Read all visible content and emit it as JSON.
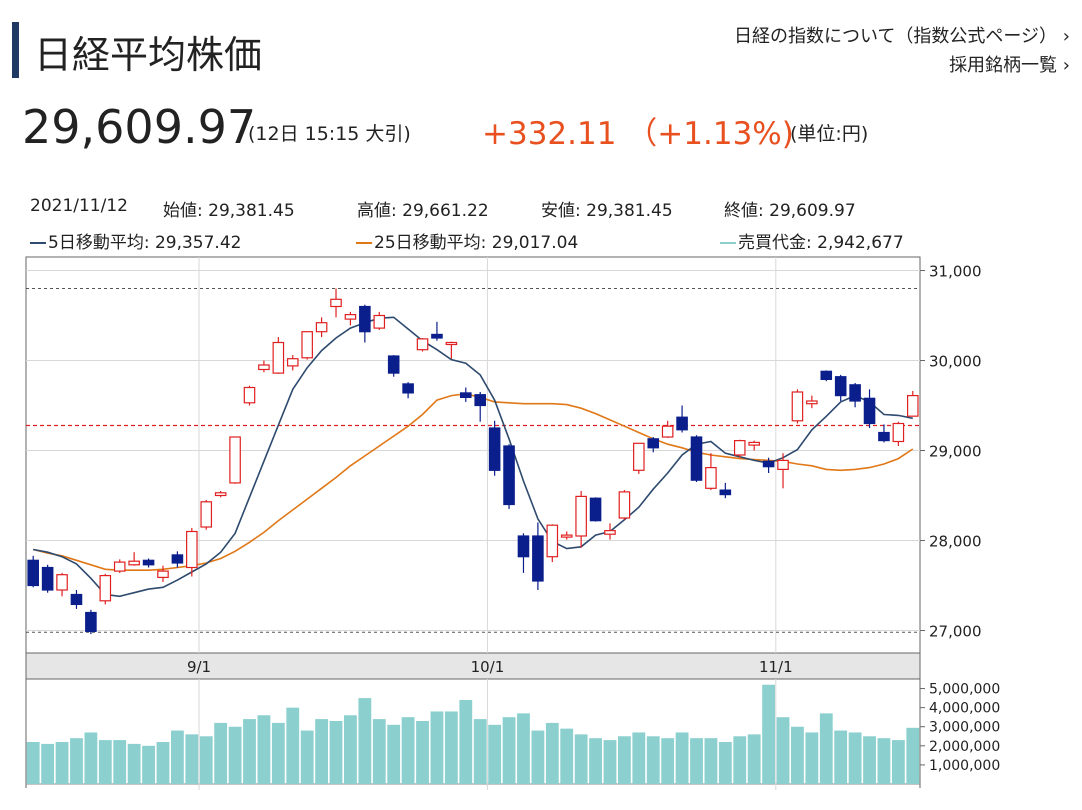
{
  "header": {
    "title": "日経平均株価",
    "link_index": "日経の指数について（指数公式ページ）",
    "link_constituents": "採用銘柄一覧",
    "chevron": "›"
  },
  "quote": {
    "price": "29,609.97",
    "time": "(12日 15:15 大引)",
    "change": "+332.11 （+1.13%)",
    "unit": "(単位:円)",
    "change_color": "#e8501f"
  },
  "ohlc": {
    "date": "2021/11/12",
    "open": "始値: 29,381.45",
    "high": "高値: 29,661.22",
    "low": "安値: 29,381.45",
    "close": "終値: 29,609.97",
    "ma5": "5日移動平均: 29,357.42",
    "ma25": "25日移動平均: 29,017.04",
    "volume": "売買代金: 2,942,677"
  },
  "colors": {
    "up": "#e02020",
    "down": "#0a1e8c",
    "ma5": "#2e4a6e",
    "ma25": "#e07818",
    "volume": "#8ccfcf",
    "ref_line": "#e02020"
  },
  "chart_data": {
    "type": "candlestick",
    "price_axis": {
      "ticks": [
        27000,
        28000,
        29000,
        30000,
        31000
      ],
      "labels": [
        "27,000",
        "28,000",
        "29,000",
        "30,000",
        "31,000"
      ],
      "ylim": [
        26750,
        31150
      ]
    },
    "volume_axis": {
      "ticks": [
        1000000,
        2000000,
        3000000,
        4000000,
        5000000
      ],
      "labels": [
        "1,000,000",
        "2,000,000",
        "3,000,000",
        "4,000,000",
        "5,000,000"
      ],
      "ylim": [
        0,
        5500000
      ]
    },
    "x_labels": [
      {
        "index": 12,
        "label": "9/1"
      },
      {
        "index": 32,
        "label": "10/1"
      },
      {
        "index": 52,
        "label": "11/1"
      }
    ],
    "reference_line": 29278,
    "dashed_levels": [
      30800,
      26980
    ],
    "candles": [
      {
        "o": 27780,
        "h": 27830,
        "l": 27480,
        "c": 27500
      },
      {
        "o": 27700,
        "h": 27730,
        "l": 27420,
        "c": 27450
      },
      {
        "o": 27450,
        "h": 27640,
        "l": 27380,
        "c": 27620
      },
      {
        "o": 27400,
        "h": 27450,
        "l": 27240,
        "c": 27290
      },
      {
        "o": 27200,
        "h": 27230,
        "l": 26960,
        "c": 26990
      },
      {
        "o": 27330,
        "h": 27630,
        "l": 27290,
        "c": 27610
      },
      {
        "o": 27660,
        "h": 27790,
        "l": 27640,
        "c": 27760
      },
      {
        "o": 27730,
        "h": 27870,
        "l": 27720,
        "c": 27770
      },
      {
        "o": 27780,
        "h": 27800,
        "l": 27700,
        "c": 27730
      },
      {
        "o": 27590,
        "h": 27720,
        "l": 27540,
        "c": 27660
      },
      {
        "o": 27840,
        "h": 27880,
        "l": 27700,
        "c": 27750
      },
      {
        "o": 27700,
        "h": 28140,
        "l": 27600,
        "c": 28100
      },
      {
        "o": 28150,
        "h": 28450,
        "l": 28120,
        "c": 28430
      },
      {
        "o": 28500,
        "h": 28550,
        "l": 28480,
        "c": 28530
      },
      {
        "o": 28640,
        "h": 29150,
        "l": 28630,
        "c": 29150
      },
      {
        "o": 29530,
        "h": 29720,
        "l": 29500,
        "c": 29700
      },
      {
        "o": 29900,
        "h": 30000,
        "l": 29870,
        "c": 29950
      },
      {
        "o": 29860,
        "h": 30260,
        "l": 29850,
        "c": 30200
      },
      {
        "o": 29940,
        "h": 30060,
        "l": 29890,
        "c": 30020
      },
      {
        "o": 30030,
        "h": 30320,
        "l": 30010,
        "c": 30320
      },
      {
        "o": 30320,
        "h": 30480,
        "l": 30260,
        "c": 30420
      },
      {
        "o": 30600,
        "h": 30800,
        "l": 30480,
        "c": 30680
      },
      {
        "o": 30460,
        "h": 30540,
        "l": 30390,
        "c": 30510
      },
      {
        "o": 30600,
        "h": 30620,
        "l": 30200,
        "c": 30320
      },
      {
        "o": 30360,
        "h": 30540,
        "l": 30340,
        "c": 30500
      },
      {
        "o": 30050,
        "h": 30060,
        "l": 29820,
        "c": 29860
      },
      {
        "o": 29740,
        "h": 29760,
        "l": 29580,
        "c": 29640
      },
      {
        "o": 30120,
        "h": 30250,
        "l": 30100,
        "c": 30240
      },
      {
        "o": 30290,
        "h": 30430,
        "l": 30220,
        "c": 30250
      },
      {
        "o": 30180,
        "h": 30210,
        "l": 30020,
        "c": 30200
      },
      {
        "o": 29640,
        "h": 29700,
        "l": 29540,
        "c": 29590
      },
      {
        "o": 29620,
        "h": 29650,
        "l": 29320,
        "c": 29500
      },
      {
        "o": 29250,
        "h": 29330,
        "l": 28720,
        "c": 28780
      },
      {
        "o": 29050,
        "h": 29070,
        "l": 28350,
        "c": 28400
      },
      {
        "o": 28050,
        "h": 28080,
        "l": 27640,
        "c": 27820
      },
      {
        "o": 28050,
        "h": 28200,
        "l": 27450,
        "c": 27550
      },
      {
        "o": 27820,
        "h": 28180,
        "l": 27760,
        "c": 28170
      },
      {
        "o": 28050,
        "h": 28100,
        "l": 28010,
        "c": 28060
      },
      {
        "o": 28050,
        "h": 28550,
        "l": 27920,
        "c": 28490
      },
      {
        "o": 28470,
        "h": 28480,
        "l": 28210,
        "c": 28220
      },
      {
        "o": 28070,
        "h": 28190,
        "l": 28010,
        "c": 28110
      },
      {
        "o": 28250,
        "h": 28560,
        "l": 28230,
        "c": 28540
      },
      {
        "o": 28780,
        "h": 29080,
        "l": 28740,
        "c": 29080
      },
      {
        "o": 29130,
        "h": 29150,
        "l": 28980,
        "c": 29030
      },
      {
        "o": 29150,
        "h": 29330,
        "l": 29140,
        "c": 29270
      },
      {
        "o": 29370,
        "h": 29500,
        "l": 29200,
        "c": 29230
      },
      {
        "o": 29150,
        "h": 29170,
        "l": 28650,
        "c": 28670
      },
      {
        "o": 28580,
        "h": 28970,
        "l": 28560,
        "c": 28810
      },
      {
        "o": 28560,
        "h": 28640,
        "l": 28470,
        "c": 28510
      },
      {
        "o": 28950,
        "h": 29120,
        "l": 28920,
        "c": 29110
      },
      {
        "o": 29060,
        "h": 29110,
        "l": 29000,
        "c": 29090
      },
      {
        "o": 28880,
        "h": 28920,
        "l": 28750,
        "c": 28820
      },
      {
        "o": 28790,
        "h": 28970,
        "l": 28580,
        "c": 28890
      },
      {
        "o": 29330,
        "h": 29680,
        "l": 29300,
        "c": 29650
      },
      {
        "o": 29520,
        "h": 29610,
        "l": 29470,
        "c": 29550
      },
      {
        "o": 29880,
        "h": 29890,
        "l": 29770,
        "c": 29790
      },
      {
        "o": 29820,
        "h": 29840,
        "l": 29550,
        "c": 29610
      },
      {
        "o": 29730,
        "h": 29750,
        "l": 29480,
        "c": 29550
      },
      {
        "o": 29580,
        "h": 29680,
        "l": 29250,
        "c": 29300
      },
      {
        "o": 29200,
        "h": 29290,
        "l": 29090,
        "c": 29110
      },
      {
        "o": 29100,
        "h": 29320,
        "l": 29050,
        "c": 29300
      },
      {
        "o": 29381.45,
        "h": 29661.22,
        "l": 29381.45,
        "c": 29609.97
      }
    ],
    "ma5": [
      27900,
      27870,
      27820,
      27740,
      27580,
      27400,
      27380,
      27420,
      27460,
      27480,
      27560,
      27650,
      27740,
      27870,
      28080,
      28480,
      28880,
      29280,
      29680,
      29920,
      30110,
      30250,
      30360,
      30420,
      30470,
      30480,
      30350,
      30220,
      30120,
      30010,
      29970,
      29840,
      29560,
      29130,
      28660,
      28240,
      27990,
      27910,
      27930,
      28060,
      28100,
      28230,
      28370,
      28570,
      28750,
      28950,
      29070,
      29100,
      28970,
      28930,
      28890,
      28860,
      28920,
      29010,
      29230,
      29380,
      29540,
      29610,
      29540,
      29400,
      29390,
      29357.42
    ],
    "ma25": [
      27900,
      27860,
      27830,
      27780,
      27730,
      27680,
      27670,
      27670,
      27670,
      27680,
      27700,
      27720,
      27750,
      27800,
      27880,
      27980,
      28090,
      28220,
      28340,
      28460,
      28580,
      28700,
      28830,
      28940,
      29050,
      29160,
      29270,
      29400,
      29560,
      29610,
      29630,
      29590,
      29540,
      29530,
      29520,
      29520,
      29520,
      29510,
      29470,
      29410,
      29340,
      29270,
      29200,
      29130,
      29070,
      29030,
      28980,
      28950,
      28930,
      28910,
      28900,
      28890,
      28880,
      28850,
      28830,
      28790,
      28780,
      28790,
      28810,
      28850,
      28910,
      29017.04
    ],
    "volume": [
      2200000,
      2100000,
      2200000,
      2400000,
      2700000,
      2300000,
      2300000,
      2100000,
      2000000,
      2200000,
      2800000,
      2600000,
      2500000,
      3200000,
      3000000,
      3400000,
      3600000,
      3200000,
      4000000,
      2800000,
      3400000,
      3300000,
      3600000,
      4500000,
      3400000,
      3100000,
      3500000,
      3300000,
      3800000,
      3800000,
      4400000,
      3400000,
      3100000,
      3500000,
      3700000,
      2800000,
      3200000,
      2900000,
      2600000,
      2400000,
      2300000,
      2500000,
      2700000,
      2500000,
      2400000,
      2700000,
      2400000,
      2400000,
      2200000,
      2500000,
      2600000,
      5200000,
      3500000,
      3000000,
      2700000,
      3700000,
      2800000,
      2700000,
      2500000,
      2400000,
      2300000,
      2942677
    ]
  }
}
